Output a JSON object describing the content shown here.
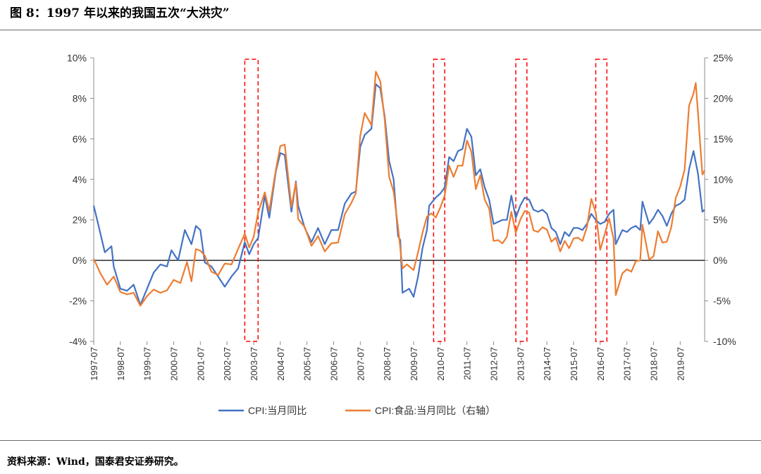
{
  "figure": {
    "title": "图 8：1997 年以来的我国五次“大洪灾”",
    "source": "资料来源：Wind，国泰君安证券研究。"
  },
  "chart_data": {
    "type": "line",
    "x_tick_labels": [
      "1997-07",
      "1998-07",
      "1999-07",
      "2000-07",
      "2001-07",
      "2002-07",
      "2003-07",
      "2004-07",
      "2005-07",
      "2006-07",
      "2007-07",
      "2008-07",
      "2009-07",
      "2010-07",
      "2011-07",
      "2012-07",
      "2013-07",
      "2014-07",
      "2015-07",
      "2016-07",
      "2017-07",
      "2018-07",
      "2019-07"
    ],
    "y_left": {
      "ylim": [
        -4,
        10
      ],
      "ticks": [
        -4,
        -2,
        0,
        2,
        4,
        6,
        8,
        10
      ],
      "tick_labels": [
        "-4%",
        "-2%",
        "0%",
        "2%",
        "4%",
        "6%",
        "8%",
        "10%"
      ]
    },
    "y_right": {
      "ylim": [
        -10,
        25
      ],
      "ticks": [
        -10,
        -5,
        0,
        5,
        10,
        15,
        20,
        25
      ],
      "tick_labels": [
        "-10%",
        "-5%",
        "0%",
        "5%",
        "10%",
        "15%",
        "20%",
        "25%"
      ]
    },
    "legend_position": "bottom",
    "series": [
      {
        "name": "CPI:当月同比",
        "axis": "left",
        "color": "#4472C4",
        "points": [
          [
            "1997-07",
            2.7
          ],
          [
            "1997-09",
            1.8
          ],
          [
            "1997-12",
            0.4
          ],
          [
            "1998-03",
            0.7
          ],
          [
            "1998-04",
            -0.3
          ],
          [
            "1998-07",
            -1.4
          ],
          [
            "1998-10",
            -1.5
          ],
          [
            "1999-01",
            -1.2
          ],
          [
            "1999-04",
            -2.2
          ],
          [
            "1999-07",
            -1.4
          ],
          [
            "1999-10",
            -0.6
          ],
          [
            "2000-01",
            -0.2
          ],
          [
            "2000-04",
            -0.3
          ],
          [
            "2000-06",
            0.5
          ],
          [
            "2000-09",
            0.0
          ],
          [
            "2000-12",
            1.5
          ],
          [
            "2001-03",
            0.8
          ],
          [
            "2001-05",
            1.7
          ],
          [
            "2001-07",
            1.5
          ],
          [
            "2001-09",
            -0.1
          ],
          [
            "2001-12",
            -0.3
          ],
          [
            "2002-03",
            -0.8
          ],
          [
            "2002-06",
            -1.3
          ],
          [
            "2002-09",
            -0.8
          ],
          [
            "2002-12",
            -0.4
          ],
          [
            "2003-03",
            0.9
          ],
          [
            "2003-05",
            0.3
          ],
          [
            "2003-07",
            0.8
          ],
          [
            "2003-09",
            1.1
          ],
          [
            "2003-12",
            3.2
          ],
          [
            "2004-02",
            2.1
          ],
          [
            "2004-05",
            4.4
          ],
          [
            "2004-07",
            5.3
          ],
          [
            "2004-09",
            5.2
          ],
          [
            "2004-12",
            2.4
          ],
          [
            "2005-02",
            3.9
          ],
          [
            "2005-03",
            2.7
          ],
          [
            "2005-06",
            1.6
          ],
          [
            "2005-09",
            0.9
          ],
          [
            "2005-12",
            1.6
          ],
          [
            "2006-03",
            0.8
          ],
          [
            "2006-06",
            1.5
          ],
          [
            "2006-09",
            1.5
          ],
          [
            "2006-12",
            2.8
          ],
          [
            "2007-03",
            3.3
          ],
          [
            "2007-05",
            3.4
          ],
          [
            "2007-07",
            5.6
          ],
          [
            "2007-09",
            6.2
          ],
          [
            "2007-12",
            6.5
          ],
          [
            "2008-02",
            8.7
          ],
          [
            "2008-04",
            8.5
          ],
          [
            "2008-06",
            7.1
          ],
          [
            "2008-08",
            4.9
          ],
          [
            "2008-10",
            4.0
          ],
          [
            "2008-12",
            1.2
          ],
          [
            "2009-01",
            1.0
          ],
          [
            "2009-02",
            -1.6
          ],
          [
            "2009-05",
            -1.4
          ],
          [
            "2009-07",
            -1.8
          ],
          [
            "2009-09",
            -0.8
          ],
          [
            "2009-11",
            0.6
          ],
          [
            "2010-01",
            1.5
          ],
          [
            "2010-02",
            2.7
          ],
          [
            "2010-05",
            3.1
          ],
          [
            "2010-07",
            3.3
          ],
          [
            "2010-09",
            3.6
          ],
          [
            "2010-11",
            5.1
          ],
          [
            "2011-01",
            4.9
          ],
          [
            "2011-03",
            5.4
          ],
          [
            "2011-05",
            5.5
          ],
          [
            "2011-07",
            6.5
          ],
          [
            "2011-09",
            6.1
          ],
          [
            "2011-11",
            4.2
          ],
          [
            "2012-01",
            4.5
          ],
          [
            "2012-03",
            3.6
          ],
          [
            "2012-05",
            3.0
          ],
          [
            "2012-07",
            1.8
          ],
          [
            "2012-09",
            1.9
          ],
          [
            "2012-11",
            2.0
          ],
          [
            "2013-01",
            2.0
          ],
          [
            "2013-03",
            3.2
          ],
          [
            "2013-05",
            2.1
          ],
          [
            "2013-07",
            2.7
          ],
          [
            "2013-09",
            3.1
          ],
          [
            "2013-11",
            3.0
          ],
          [
            "2014-01",
            2.5
          ],
          [
            "2014-03",
            2.4
          ],
          [
            "2014-05",
            2.5
          ],
          [
            "2014-07",
            2.3
          ],
          [
            "2014-09",
            1.6
          ],
          [
            "2014-11",
            1.4
          ],
          [
            "2015-01",
            0.8
          ],
          [
            "2015-03",
            1.4
          ],
          [
            "2015-05",
            1.2
          ],
          [
            "2015-07",
            1.6
          ],
          [
            "2015-09",
            1.6
          ],
          [
            "2015-11",
            1.5
          ],
          [
            "2016-01",
            1.8
          ],
          [
            "2016-03",
            2.3
          ],
          [
            "2016-05",
            2.0
          ],
          [
            "2016-07",
            1.8
          ],
          [
            "2016-09",
            1.9
          ],
          [
            "2016-11",
            2.3
          ],
          [
            "2017-01",
            2.5
          ],
          [
            "2017-02",
            0.8
          ],
          [
            "2017-05",
            1.5
          ],
          [
            "2017-07",
            1.4
          ],
          [
            "2017-09",
            1.6
          ],
          [
            "2017-11",
            1.7
          ],
          [
            "2018-01",
            1.5
          ],
          [
            "2018-02",
            2.9
          ],
          [
            "2018-05",
            1.8
          ],
          [
            "2018-07",
            2.1
          ],
          [
            "2018-09",
            2.5
          ],
          [
            "2018-11",
            2.2
          ],
          [
            "2019-01",
            1.7
          ],
          [
            "2019-03",
            2.3
          ],
          [
            "2019-05",
            2.7
          ],
          [
            "2019-07",
            2.8
          ],
          [
            "2019-09",
            3.0
          ],
          [
            "2019-11",
            4.5
          ],
          [
            "2020-01",
            5.4
          ],
          [
            "2020-03",
            4.3
          ],
          [
            "2020-05",
            2.4
          ],
          [
            "2020-06",
            2.5
          ]
        ]
      },
      {
        "name": "CPI:食品:当月同比（右轴）",
        "axis": "right",
        "color": "#ED7D31",
        "points": [
          [
            "1997-07",
            0.2
          ],
          [
            "1997-10",
            -1.6
          ],
          [
            "1998-01",
            -3.0
          ],
          [
            "1998-04",
            -2.0
          ],
          [
            "1998-07",
            -3.9
          ],
          [
            "1998-10",
            -4.2
          ],
          [
            "1999-01",
            -4.0
          ],
          [
            "1999-04",
            -5.6
          ],
          [
            "1999-07",
            -4.4
          ],
          [
            "1999-10",
            -3.6
          ],
          [
            "2000-01",
            -4.0
          ],
          [
            "2000-04",
            -3.7
          ],
          [
            "2000-07",
            -2.4
          ],
          [
            "2000-10",
            -2.8
          ],
          [
            "2001-01",
            -0.2
          ],
          [
            "2001-03",
            -2.6
          ],
          [
            "2001-05",
            1.4
          ],
          [
            "2001-07",
            1.2
          ],
          [
            "2001-09",
            0.6
          ],
          [
            "2001-12",
            -1.4
          ],
          [
            "2002-03",
            -1.8
          ],
          [
            "2002-06",
            -0.4
          ],
          [
            "2002-09",
            -0.5
          ],
          [
            "2002-12",
            1.4
          ],
          [
            "2003-03",
            3.3
          ],
          [
            "2003-05",
            1.6
          ],
          [
            "2003-07",
            2.9
          ],
          [
            "2003-09",
            5.9
          ],
          [
            "2003-12",
            8.4
          ],
          [
            "2004-02",
            6.1
          ],
          [
            "2004-05",
            11.2
          ],
          [
            "2004-07",
            14.1
          ],
          [
            "2004-09",
            14.3
          ],
          [
            "2004-12",
            6.6
          ],
          [
            "2005-02",
            9.6
          ],
          [
            "2005-03",
            5.1
          ],
          [
            "2005-06",
            4.1
          ],
          [
            "2005-09",
            1.8
          ],
          [
            "2005-12",
            3.0
          ],
          [
            "2006-03",
            1.1
          ],
          [
            "2006-06",
            2.1
          ],
          [
            "2006-09",
            2.2
          ],
          [
            "2006-12",
            5.7
          ],
          [
            "2007-03",
            7.1
          ],
          [
            "2007-05",
            8.3
          ],
          [
            "2007-07",
            15.4
          ],
          [
            "2007-09",
            18.2
          ],
          [
            "2007-12",
            16.7
          ],
          [
            "2008-02",
            23.3
          ],
          [
            "2008-04",
            22.1
          ],
          [
            "2008-06",
            17.3
          ],
          [
            "2008-08",
            10.3
          ],
          [
            "2008-10",
            8.5
          ],
          [
            "2008-12",
            4.1
          ],
          [
            "2009-02",
            -1.0
          ],
          [
            "2009-04",
            -0.5
          ],
          [
            "2009-07",
            -1.2
          ],
          [
            "2009-09",
            1.0
          ],
          [
            "2009-11",
            3.4
          ],
          [
            "2010-01",
            5.4
          ],
          [
            "2010-03",
            5.8
          ],
          [
            "2010-05",
            5.3
          ],
          [
            "2010-07",
            6.5
          ],
          [
            "2010-09",
            8.0
          ],
          [
            "2010-11",
            11.7
          ],
          [
            "2011-01",
            10.3
          ],
          [
            "2011-03",
            11.7
          ],
          [
            "2011-05",
            11.7
          ],
          [
            "2011-07",
            14.8
          ],
          [
            "2011-09",
            13.4
          ],
          [
            "2011-11",
            8.8
          ],
          [
            "2012-01",
            10.5
          ],
          [
            "2012-03",
            7.5
          ],
          [
            "2012-05",
            6.4
          ],
          [
            "2012-07",
            2.4
          ],
          [
            "2012-09",
            2.5
          ],
          [
            "2012-11",
            2.1
          ],
          [
            "2013-01",
            2.9
          ],
          [
            "2013-03",
            6.0
          ],
          [
            "2013-05",
            3.4
          ],
          [
            "2013-07",
            5.0
          ],
          [
            "2013-09",
            6.1
          ],
          [
            "2013-11",
            5.9
          ],
          [
            "2014-01",
            3.7
          ],
          [
            "2014-03",
            3.5
          ],
          [
            "2014-05",
            4.1
          ],
          [
            "2014-07",
            3.8
          ],
          [
            "2014-09",
            2.3
          ],
          [
            "2014-11",
            2.8
          ],
          [
            "2015-01",
            1.1
          ],
          [
            "2015-03",
            2.4
          ],
          [
            "2015-05",
            1.5
          ],
          [
            "2015-07",
            2.7
          ],
          [
            "2015-09",
            2.8
          ],
          [
            "2015-11",
            2.4
          ],
          [
            "2016-01",
            4.1
          ],
          [
            "2016-03",
            7.6
          ],
          [
            "2016-05",
            5.9
          ],
          [
            "2016-07",
            1.3
          ],
          [
            "2016-09",
            3.2
          ],
          [
            "2016-11",
            5.2
          ],
          [
            "2017-01",
            2.7
          ],
          [
            "2017-02",
            -4.3
          ],
          [
            "2017-05",
            -1.6
          ],
          [
            "2017-07",
            -1.1
          ],
          [
            "2017-09",
            -1.4
          ],
          [
            "2017-11",
            -0.1
          ],
          [
            "2018-01",
            0.0
          ],
          [
            "2018-02",
            4.4
          ],
          [
            "2018-05",
            0.1
          ],
          [
            "2018-07",
            0.5
          ],
          [
            "2018-09",
            3.6
          ],
          [
            "2018-11",
            2.2
          ],
          [
            "2019-01",
            2.3
          ],
          [
            "2019-03",
            4.1
          ],
          [
            "2019-05",
            7.7
          ],
          [
            "2019-07",
            9.1
          ],
          [
            "2019-09",
            11.2
          ],
          [
            "2019-11",
            19.1
          ],
          [
            "2020-01",
            20.6
          ],
          [
            "2020-02",
            21.9
          ],
          [
            "2020-03",
            18.3
          ],
          [
            "2020-05",
            10.6
          ],
          [
            "2020-06",
            11.1
          ]
        ]
      }
    ],
    "highlight_periods": [
      {
        "start": "2003-03",
        "end": "2003-09"
      },
      {
        "start": "2010-04",
        "end": "2010-09"
      },
      {
        "start": "2013-05",
        "end": "2013-10"
      },
      {
        "start": "2016-05",
        "end": "2016-10"
      }
    ]
  }
}
